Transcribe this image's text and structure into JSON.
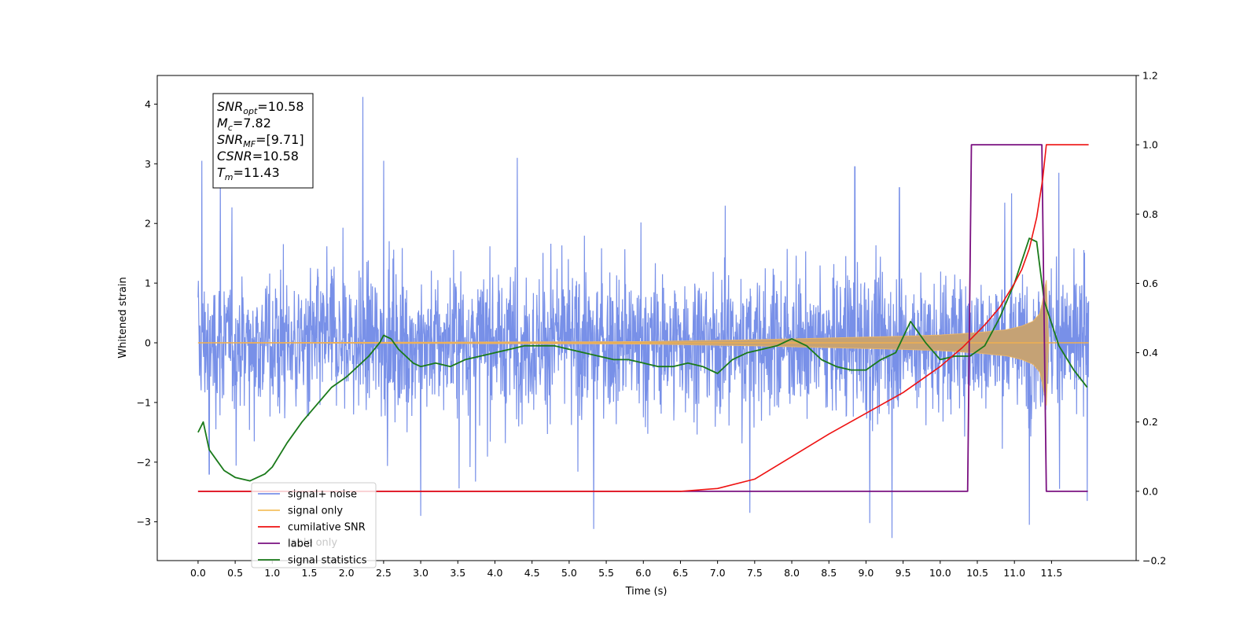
{
  "chart_data": {
    "type": "line",
    "xlabel": "Time (s)",
    "ylabel_left": "Whitened strain",
    "ylabel_right": "",
    "xlim": [
      -0.55,
      12.64
    ],
    "ylim_left": [
      -3.65,
      4.48
    ],
    "ylim_right": [
      -0.2,
      1.2
    ],
    "x_ticks": [
      "0.0",
      "0.5",
      "1.0",
      "1.5",
      "2.0",
      "2.5",
      "3.0",
      "3.5",
      "4.0",
      "4.5",
      "5.0",
      "5.5",
      "6.0",
      "6.5",
      "7.0",
      "7.5",
      "8.0",
      "8.5",
      "9.0",
      "9.5",
      "10.0",
      "10.5",
      "11.0",
      "11.5"
    ],
    "y_ticks_left": [
      "4",
      "3",
      "2",
      "1",
      "0",
      "−1",
      "−2",
      "−3"
    ],
    "y_ticks_right": [
      "1.2",
      "1.0",
      "0.8",
      "0.6",
      "0.4",
      "0.2",
      "0.0",
      "−0.2"
    ],
    "grid": false,
    "legend_position": "lower-left",
    "annotation": {
      "lines": [
        {
          "base": "SNR",
          "sub": "opt",
          "value": "=10.58"
        },
        {
          "base": "M",
          "sub": "c",
          "value": "=7.82"
        },
        {
          "base": "SNR",
          "sub": "MF",
          "value": "=[9.71]"
        },
        {
          "base": "CSNR",
          "sub": "",
          "value": "=10.58"
        },
        {
          "base": "T",
          "sub": "m",
          "value": "=11.43"
        }
      ]
    },
    "series": [
      {
        "name": "signal+ noise",
        "color": "#7890e8",
        "axis": "left",
        "style": "noise",
        "x_range": [
          0.0,
          12.0
        ],
        "typical_range": [
          -1.3,
          1.3
        ],
        "spike_peaks": [
          {
            "x": 0.05,
            "y": 3.05
          },
          {
            "x": 0.3,
            "y": 2.9
          },
          {
            "x": 2.22,
            "y": 4.12
          },
          {
            "x": 2.5,
            "y": 3.05
          },
          {
            "x": 4.3,
            "y": 3.1
          },
          {
            "x": 8.85,
            "y": 2.95
          },
          {
            "x": 9.45,
            "y": 2.6
          },
          {
            "x": 11.6,
            "y": 2.85
          }
        ],
        "spike_troughs": [
          {
            "x": 0.15,
            "y": -2.2
          },
          {
            "x": 3.0,
            "y": -2.9
          },
          {
            "x": 5.33,
            "y": -3.12
          },
          {
            "x": 9.05,
            "y": -3.02
          },
          {
            "x": 9.35,
            "y": -3.27
          },
          {
            "x": 11.2,
            "y": -3.05
          },
          {
            "x": 11.98,
            "y": -2.65
          }
        ]
      },
      {
        "name": "signal only",
        "color": "#f0b050",
        "axis": "left",
        "style": "chirp",
        "x": [
          0.0,
          6.0,
          7.5,
          8.5,
          9.5,
          10.0,
          10.5,
          10.9,
          11.1,
          11.25,
          11.35,
          11.43,
          11.45,
          12.0
        ],
        "amplitude": [
          0.0,
          0.02,
          0.05,
          0.08,
          0.11,
          0.13,
          0.17,
          0.22,
          0.28,
          0.36,
          0.5,
          1.05,
          0.0,
          0.0
        ]
      },
      {
        "name": "cumilative SNR",
        "color": "#ee1111",
        "axis": "right",
        "x": [
          0.0,
          6.5,
          7.0,
          7.5,
          8.0,
          8.5,
          9.0,
          9.5,
          10.0,
          10.3,
          10.6,
          10.8,
          11.0,
          11.1,
          11.2,
          11.3,
          11.38,
          11.43,
          12.0
        ],
        "y": [
          0.0,
          0.0,
          0.008,
          0.035,
          0.1,
          0.165,
          0.225,
          0.285,
          0.36,
          0.415,
          0.48,
          0.53,
          0.6,
          0.64,
          0.7,
          0.79,
          0.9,
          1.0,
          1.0
        ]
      },
      {
        "name": "label",
        "color": "#7a1080",
        "axis": "right",
        "x": [
          0.0,
          10.37,
          10.42,
          11.37,
          11.43,
          11.99
        ],
        "y": [
          0.0,
          0.0,
          1.0,
          1.0,
          0.0,
          0.0
        ]
      },
      {
        "name": "signal statistics",
        "color": "#1a7a1a",
        "axis": "right",
        "x": [
          0.0,
          0.07,
          0.15,
          0.25,
          0.35,
          0.5,
          0.7,
          0.9,
          1.0,
          1.2,
          1.4,
          1.6,
          1.8,
          2.0,
          2.1,
          2.3,
          2.45,
          2.5,
          2.6,
          2.7,
          2.9,
          3.0,
          3.2,
          3.4,
          3.6,
          3.8,
          4.0,
          4.2,
          4.4,
          4.6,
          4.8,
          5.0,
          5.2,
          5.4,
          5.6,
          5.8,
          6.0,
          6.2,
          6.4,
          6.6,
          6.8,
          7.0,
          7.2,
          7.4,
          7.6,
          7.8,
          8.0,
          8.2,
          8.4,
          8.6,
          8.8,
          9.0,
          9.2,
          9.4,
          9.6,
          9.8,
          10.0,
          10.2,
          10.4,
          10.6,
          10.8,
          11.0,
          11.2,
          11.3,
          11.4,
          11.6,
          11.8,
          11.98
        ],
        "y": [
          0.17,
          0.2,
          0.12,
          0.09,
          0.06,
          0.04,
          0.03,
          0.05,
          0.07,
          0.14,
          0.2,
          0.25,
          0.3,
          0.33,
          0.35,
          0.39,
          0.43,
          0.45,
          0.44,
          0.41,
          0.37,
          0.36,
          0.37,
          0.36,
          0.38,
          0.39,
          0.4,
          0.41,
          0.42,
          0.42,
          0.42,
          0.41,
          0.4,
          0.39,
          0.38,
          0.38,
          0.37,
          0.36,
          0.36,
          0.37,
          0.36,
          0.34,
          0.38,
          0.4,
          0.41,
          0.42,
          0.44,
          0.42,
          0.38,
          0.36,
          0.35,
          0.35,
          0.38,
          0.4,
          0.49,
          0.43,
          0.38,
          0.39,
          0.39,
          0.42,
          0.5,
          0.6,
          0.73,
          0.72,
          0.55,
          0.42,
          0.35,
          0.3
        ]
      }
    ]
  },
  "legend": {
    "items": [
      {
        "label": "signal+ noise",
        "color": "#7890e8"
      },
      {
        "label": "signal only",
        "color": "#f5c060"
      },
      {
        "label": "cumilative SNR",
        "color": "#ee1111"
      },
      {
        "label": "label",
        "color": "#7a1080"
      },
      {
        "label": "signal statistics",
        "color": "#1a7a1a"
      }
    ],
    "ghost_text": "lable only"
  }
}
